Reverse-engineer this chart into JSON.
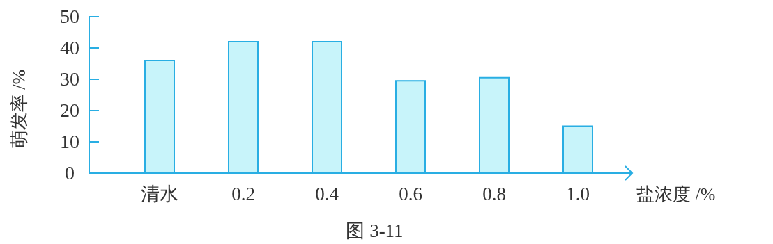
{
  "chart_data": {
    "type": "bar",
    "title": "图 3-11",
    "xlabel": "盐浓度 /%",
    "ylabel": "萌发率 /%",
    "categories": [
      "清水",
      "0.2",
      "0.4",
      "0.6",
      "0.8",
      "1.0"
    ],
    "values": [
      36,
      42,
      42,
      29.5,
      30.5,
      15
    ],
    "color": "#c8f4fa",
    "ylim": [
      0,
      50
    ],
    "yticks": [
      0,
      10,
      20,
      30,
      40,
      50
    ]
  }
}
